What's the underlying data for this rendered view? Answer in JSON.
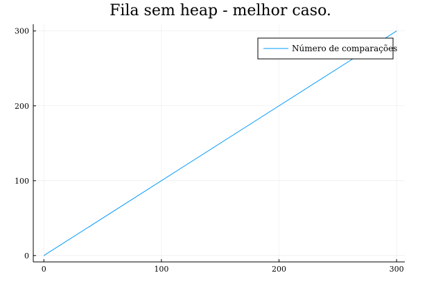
{
  "chart_data": {
    "type": "line",
    "title": "Fila sem heap - melhor caso.",
    "xlabel": "",
    "ylabel": "",
    "xlim": [
      -9,
      307
    ],
    "ylim": [
      -8.5,
      309
    ],
    "xticks": [
      0,
      100,
      200,
      300
    ],
    "yticks": [
      0,
      100,
      200,
      300
    ],
    "xtick_labels": [
      "0",
      "100",
      "200",
      "300"
    ],
    "ytick_labels": [
      "0",
      "100",
      "200",
      "300"
    ],
    "grid": true,
    "legend_position": "top-right",
    "series": [
      {
        "name": "Número de comparações",
        "color": "#009af9",
        "x": [
          0,
          300
        ],
        "y": [
          0,
          300
        ]
      }
    ]
  }
}
